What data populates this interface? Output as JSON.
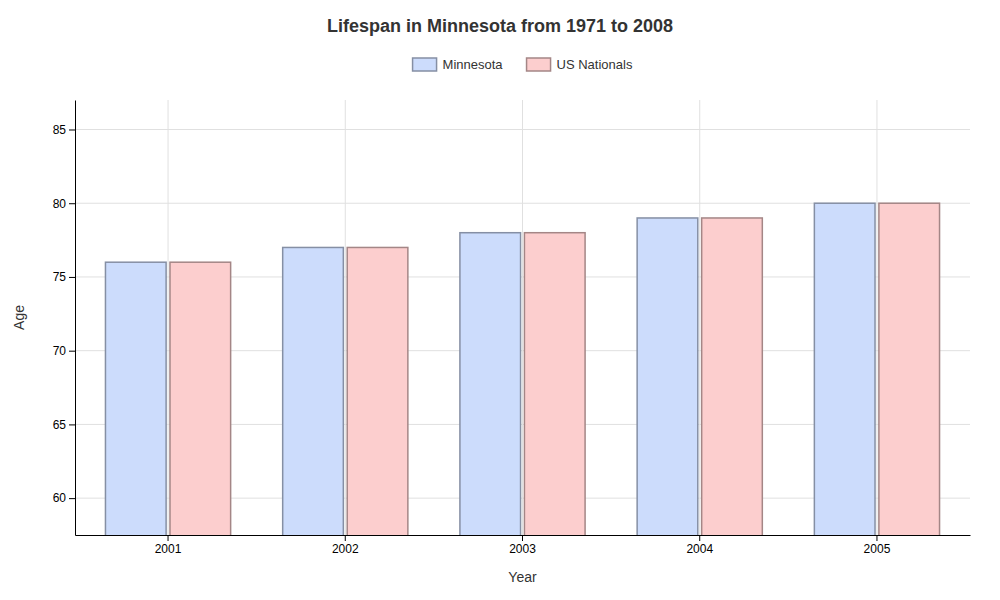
{
  "chart_data": {
    "type": "bar",
    "title": "Lifespan in Minnesota from 1971 to 2008",
    "x_label": "Year",
    "y_label": "Age",
    "categories": [
      "2001",
      "2002",
      "2003",
      "2004",
      "2005"
    ],
    "series": [
      {
        "name": "Minnesota",
        "color": "#ccdcfc",
        "values": [
          76,
          77,
          78,
          79,
          80
        ]
      },
      {
        "name": "US Nationals",
        "color": "#fccece",
        "values": [
          76,
          77,
          78,
          79,
          80
        ]
      }
    ],
    "ylim": [
      57.5,
      87
    ],
    "yticks": [
      60,
      65,
      70,
      75,
      80,
      85
    ],
    "grid": true,
    "legend": "top"
  }
}
